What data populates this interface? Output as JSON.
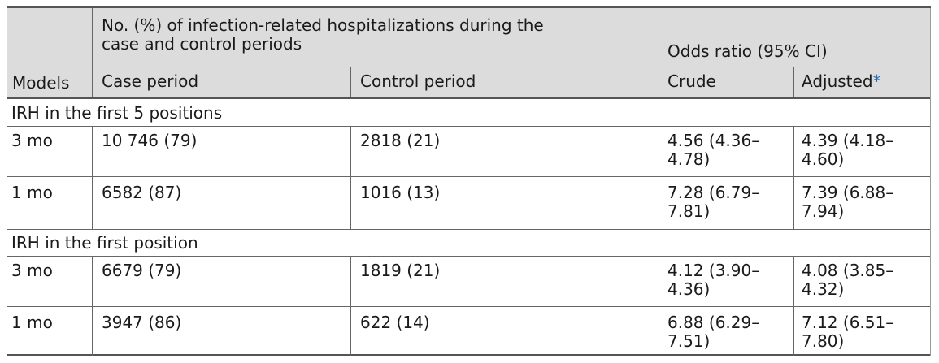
{
  "header": {
    "models": "Models",
    "group_no": "No. (%) of infection-related hospitalizations during the case and control periods",
    "group_no_line1": "No. (%) of infection-related hospitalizations during the",
    "group_no_line2": "case and control periods",
    "group_or": "Odds ratio (95% CI)",
    "case_period": "Case period",
    "control_period": "Control period",
    "crude": "Crude",
    "adjusted": "Adjusted",
    "adjusted_mark": "*"
  },
  "sections": [
    {
      "title": "IRH in the first 5 positions",
      "rows": [
        {
          "model": "3 mo",
          "case": "10 746 (79)",
          "control": "2818 (21)",
          "crude_1": "4.56 (4.36–",
          "crude_2": "4.78)",
          "adj_1": "4.39 (4.18–",
          "adj_2": "4.60)"
        },
        {
          "model": "1 mo",
          "case": "6582 (87)",
          "control": "1016 (13)",
          "crude_1": "7.28 (6.79–",
          "crude_2": "7.81)",
          "adj_1": "7.39 (6.88–",
          "adj_2": "7.94)"
        }
      ]
    },
    {
      "title": "IRH in the first position",
      "rows": [
        {
          "model": "3 mo",
          "case": "6679 (79)",
          "control": "1819 (21)",
          "crude_1": "4.12 (3.90–",
          "crude_2": "4.36)",
          "adj_1": "4.08 (3.85–",
          "adj_2": "4.32)"
        },
        {
          "model": "1 mo",
          "case": "3947 (86)",
          "control": "622 (14)",
          "crude_1": "6.88 (6.29–",
          "crude_2": "7.51)",
          "adj_1": "7.12 (6.51–",
          "adj_2": "7.80)"
        }
      ]
    }
  ]
}
